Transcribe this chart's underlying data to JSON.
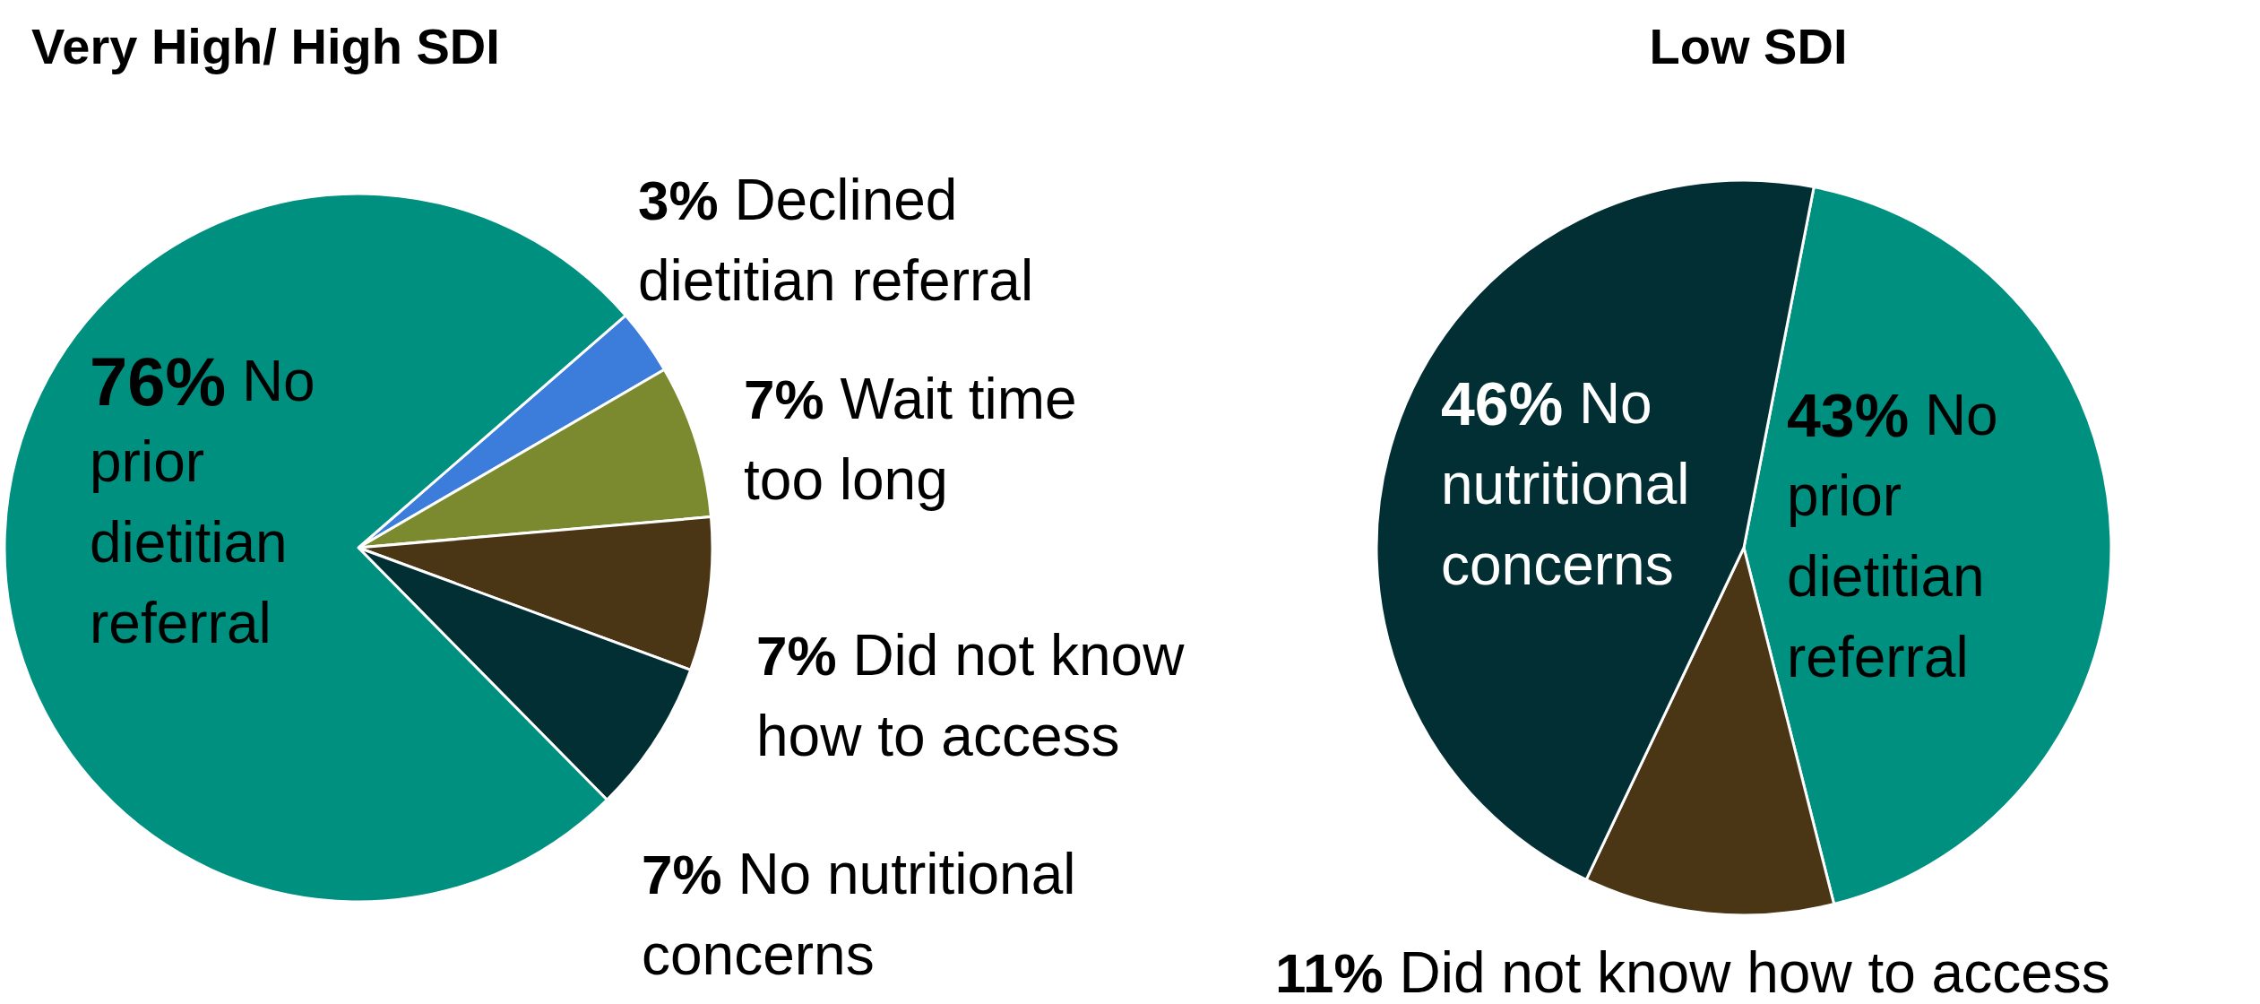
{
  "chart_data": [
    {
      "type": "pie",
      "title": "Very High/ High SDI",
      "categories": [
        "Declined dietitian referral",
        "Wait time too long",
        "Did not know how to access",
        "No nutritional concerns",
        "No prior dietitian referral"
      ],
      "values": [
        3,
        7,
        7,
        7,
        76
      ],
      "value_labels": [
        "3%",
        "7%",
        "7%",
        "7%",
        "76%"
      ],
      "colors": [
        "#3c7ddc",
        "#7b8a2e",
        "#4a3515",
        "#022f33",
        "#009080"
      ]
    },
    {
      "type": "pie",
      "title": "Low SDI",
      "categories": [
        "No prior dietitian referral",
        "Did not know how to access",
        "No nutritional concerns"
      ],
      "values": [
        43,
        11,
        46
      ],
      "value_labels": [
        "43%",
        "11%",
        "46%"
      ],
      "colors": [
        "#009080",
        "#4a3515",
        "#022f33"
      ]
    }
  ]
}
